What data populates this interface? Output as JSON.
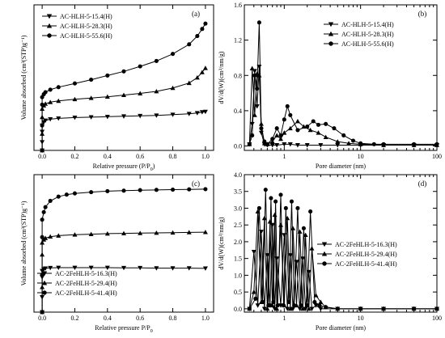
{
  "chart_data": [
    {
      "type": "line",
      "panel_label": "(a)",
      "xlabel": "Relative pressure (P/P",
      "xlabel_sub": "0",
      "xlabel_end": ")",
      "ylabel": "Volume absorbed (cm³(STP)g⁻¹)",
      "xlim": [
        -0.05,
        1.05
      ],
      "ylim": [
        0,
        350
      ],
      "xticks": [
        0.0,
        0.2,
        0.4,
        0.6,
        0.8,
        1.0
      ],
      "xtick_labels": [
        "0.0",
        "0.2",
        "0.4",
        "0.6",
        "0.8",
        "1.0"
      ],
      "yticks": [],
      "ytick_labels": [],
      "legend_loc": "top-left",
      "series": [
        {
          "name": "AC-HLH-5-15.4(H)",
          "marker": "tri-down",
          "x": [
            0.0,
            0.0,
            0.0,
            0.0,
            0.01,
            0.02,
            0.05,
            0.1,
            0.2,
            0.3,
            0.4,
            0.5,
            0.6,
            0.7,
            0.8,
            0.9,
            0.95,
            0.98,
            1.0
          ],
          "y": [
            0,
            20,
            45,
            60,
            68,
            72,
            75,
            77,
            79,
            80,
            81,
            82,
            83,
            84,
            86,
            88,
            90,
            92,
            93
          ]
        },
        {
          "name": "AC-HLH-5-28.3(H)",
          "marker": "tri-up",
          "x": [
            0.0,
            0.0,
            0.0,
            0.0,
            0.01,
            0.02,
            0.05,
            0.1,
            0.2,
            0.3,
            0.4,
            0.5,
            0.6,
            0.7,
            0.8,
            0.9,
            0.95,
            0.98,
            1.0
          ],
          "y": [
            0,
            40,
            80,
            100,
            108,
            112,
            116,
            119,
            123,
            126,
            129,
            133,
            137,
            142,
            150,
            162,
            175,
            188,
            198
          ]
        },
        {
          "name": "AC-HLH-5-55.6(H)",
          "marker": "circle",
          "x": [
            0.0,
            0.0,
            0.0,
            0.0,
            0.01,
            0.02,
            0.05,
            0.1,
            0.2,
            0.3,
            0.4,
            0.5,
            0.6,
            0.7,
            0.8,
            0.9,
            0.95,
            0.98,
            1.0
          ],
          "y": [
            0,
            60,
            110,
            128,
            135,
            140,
            146,
            152,
            161,
            170,
            180,
            190,
            202,
            215,
            232,
            255,
            275,
            292,
            305
          ]
        }
      ]
    },
    {
      "type": "line",
      "panel_label": "(b)",
      "xlabel": "Pore diameter (nm)",
      "ylabel": "dV/d(W)(cm³/nm/g)",
      "xscale": "log",
      "xlim": [
        0.3,
        100
      ],
      "ylim": [
        -0.05,
        1.6
      ],
      "xticks": [
        1,
        10,
        100
      ],
      "xtick_labels": [
        "1",
        "10",
        "100"
      ],
      "yticks": [
        0.0,
        0.4,
        0.8,
        1.2,
        1.6
      ],
      "ytick_labels": [
        "0.0",
        "0.4",
        "0.8",
        "1.2",
        "1.6"
      ],
      "legend_loc": "top-right",
      "series": [
        {
          "name": "AC-HLH-5-15.4(H)",
          "marker": "tri-down",
          "x": [
            0.35,
            0.38,
            0.41,
            0.44,
            0.47,
            0.5,
            0.55,
            0.6,
            0.7,
            0.8,
            1.0,
            1.2,
            1.5,
            2,
            3,
            5,
            10,
            20,
            50,
            100
          ],
          "y": [
            0.02,
            0.25,
            0.85,
            0.45,
            0.9,
            0.15,
            0.02,
            0.01,
            0.01,
            0.01,
            0.02,
            0.02,
            0.01,
            0.01,
            0.01,
            0.01,
            0.01,
            0.01,
            0.01,
            0.01
          ]
        },
        {
          "name": "AC-HLH-5-28.3(H)",
          "marker": "tri-up",
          "x": [
            0.35,
            0.38,
            0.41,
            0.44,
            0.47,
            0.5,
            0.55,
            0.6,
            0.7,
            0.8,
            0.9,
            1.0,
            1.2,
            1.5,
            1.8,
            2.2,
            2.8,
            3.5,
            5,
            7,
            10,
            20,
            50,
            100
          ],
          "y": [
            0.02,
            0.88,
            0.35,
            0.82,
            0.8,
            0.25,
            0.03,
            0.02,
            0.05,
            0.12,
            0.08,
            0.15,
            0.2,
            0.28,
            0.22,
            0.18,
            0.15,
            0.1,
            0.05,
            0.03,
            0.02,
            0.01,
            0.01,
            0.01
          ]
        },
        {
          "name": "AC-HLH-5-55.6(H)",
          "marker": "circle",
          "x": [
            0.35,
            0.38,
            0.41,
            0.44,
            0.47,
            0.5,
            0.55,
            0.6,
            0.7,
            0.8,
            0.9,
            1.0,
            1.1,
            1.2,
            1.5,
            2.0,
            2.4,
            2.8,
            3.5,
            4.5,
            6,
            8,
            10,
            15,
            20,
            50,
            100
          ],
          "y": [
            0.02,
            0.12,
            0.8,
            0.65,
            1.4,
            0.2,
            0.05,
            0.02,
            0.08,
            0.2,
            0.12,
            0.3,
            0.45,
            0.35,
            0.18,
            0.22,
            0.28,
            0.24,
            0.25,
            0.2,
            0.12,
            0.06,
            0.03,
            0.02,
            0.02,
            0.02,
            0.02
          ]
        }
      ]
    },
    {
      "type": "line",
      "panel_label": "(c)",
      "xlabel": "Relative pressure P/P",
      "xlabel_sub": "0",
      "xlabel_end": "",
      "ylabel": "Volume absorbed (cm³(STP)g⁻¹)",
      "xlim": [
        -0.05,
        1.05
      ],
      "ylim": [
        0,
        550
      ],
      "xticks": [
        0.0,
        0.2,
        0.4,
        0.6,
        0.8,
        1.0
      ],
      "xtick_labels": [
        "0.0",
        "0.2",
        "0.4",
        "0.6",
        "0.8",
        "1.0"
      ],
      "yticks": [],
      "ytick_labels": [],
      "legend_loc": "bottom-left",
      "series": [
        {
          "name": "AC-2FeHLH-5-16.3(H)",
          "marker": "tri-down",
          "x": [
            0.0,
            0.0,
            0.0,
            0.0,
            0.01,
            0.02,
            0.05,
            0.1,
            0.2,
            0.3,
            0.4,
            0.5,
            0.6,
            0.7,
            0.8,
            0.9,
            1.0
          ],
          "y": [
            0,
            60,
            140,
            165,
            172,
            175,
            177,
            178,
            178,
            178,
            178,
            177,
            177,
            176,
            176,
            176,
            175
          ]
        },
        {
          "name": "AC-2FeHLH-5-29.4(H)",
          "marker": "tri-up",
          "x": [
            0.0,
            0.0,
            0.0,
            0.0,
            0.01,
            0.02,
            0.05,
            0.1,
            0.2,
            0.3,
            0.4,
            0.5,
            0.6,
            0.7,
            0.8,
            0.9,
            1.0
          ],
          "y": [
            0,
            100,
            230,
            278,
            290,
            296,
            302,
            306,
            310,
            312,
            314,
            315,
            316,
            317,
            318,
            319,
            320
          ]
        },
        {
          "name": "AC-2FeHLH-5-41.4(H)",
          "marker": "circle",
          "x": [
            0.0,
            0.0,
            0.0,
            0.0,
            0.01,
            0.02,
            0.05,
            0.1,
            0.15,
            0.2,
            0.3,
            0.4,
            0.5,
            0.6,
            0.7,
            0.8,
            0.9,
            1.0
          ],
          "y": [
            0,
            150,
            300,
            370,
            400,
            420,
            445,
            462,
            470,
            475,
            480,
            484,
            486,
            488,
            489,
            490,
            491,
            492
          ]
        }
      ]
    },
    {
      "type": "line",
      "panel_label": "(d)",
      "xlabel": "Pore diameter (nm)",
      "ylabel": "dV/d(W)(cm³/nm/g)",
      "xscale": "log",
      "xlim": [
        0.3,
        100
      ],
      "ylim": [
        -0.1,
        4.0
      ],
      "xticks": [
        1,
        10,
        100
      ],
      "xtick_labels": [
        "1",
        "10",
        "100"
      ],
      "yticks": [
        0.0,
        0.5,
        1.0,
        1.5,
        2.0,
        2.5,
        3.0,
        3.5,
        4.0
      ],
      "ytick_labels": [
        "0.0",
        "0.5",
        "1.0",
        "1.5",
        "2.0",
        "2.5",
        "3.0",
        "3.5",
        "4.0"
      ],
      "legend_loc": "center-right",
      "series": [
        {
          "name": "AC-2FeHLH-5-16.3(H)",
          "marker": "tri-down",
          "x": [
            0.35,
            0.4,
            0.45,
            0.5,
            0.55,
            0.6,
            0.65,
            0.7,
            0.75,
            0.8,
            0.9,
            1.0,
            1.1,
            1.2,
            1.3,
            1.45,
            1.6,
            1.75,
            1.9,
            2.1,
            2.3,
            2.6,
            3.0,
            5,
            10,
            20,
            50,
            100
          ],
          "y": [
            0.0,
            1.7,
            0.1,
            2.3,
            0.0,
            1.6,
            0.1,
            2.5,
            0.0,
            1.5,
            0.1,
            2.2,
            0.0,
            1.6,
            0.0,
            1.4,
            0.0,
            1.5,
            0.0,
            1.1,
            0.0,
            0.1,
            0.0,
            0.0,
            0.0,
            0.0,
            0.0,
            0.0
          ]
        },
        {
          "name": "AC-2FeHLH-5-29.4(H)",
          "marker": "tri-up",
          "x": [
            0.35,
            0.4,
            0.45,
            0.5,
            0.55,
            0.6,
            0.65,
            0.7,
            0.75,
            0.8,
            0.9,
            1.0,
            1.1,
            1.2,
            1.3,
            1.45,
            1.6,
            1.75,
            1.9,
            2.1,
            2.3,
            2.6,
            3.0,
            3.5,
            5,
            10,
            20,
            50,
            100
          ],
          "y": [
            0.0,
            0.5,
            2.9,
            0.2,
            2.7,
            0.0,
            2.6,
            0.1,
            2.8,
            0.0,
            2.5,
            0.1,
            2.7,
            0.0,
            2.4,
            0.1,
            2.3,
            0.0,
            2.2,
            0.0,
            1.8,
            0.4,
            0.2,
            0.05,
            0.0,
            0.0,
            0.0,
            0.0,
            0.0
          ]
        },
        {
          "name": "AC-2FeHLH-5-41.4(H)",
          "marker": "circle",
          "x": [
            0.35,
            0.42,
            0.47,
            0.52,
            0.57,
            0.62,
            0.67,
            0.72,
            0.77,
            0.82,
            0.9,
            0.98,
            1.05,
            1.15,
            1.25,
            1.35,
            1.5,
            1.65,
            1.8,
            2.0,
            2.2,
            2.5,
            2.9,
            3.5,
            5,
            10,
            20,
            50,
            100
          ],
          "y": [
            0.0,
            0.3,
            3.0,
            0.2,
            3.55,
            0.1,
            3.3,
            0.2,
            3.2,
            0.1,
            3.4,
            0.1,
            3.0,
            0.2,
            3.2,
            0.1,
            3.0,
            0.1,
            2.4,
            0.1,
            2.9,
            0.2,
            0.1,
            0.05,
            0.0,
            0.0,
            0.0,
            0.0,
            0.0
          ]
        }
      ]
    }
  ]
}
